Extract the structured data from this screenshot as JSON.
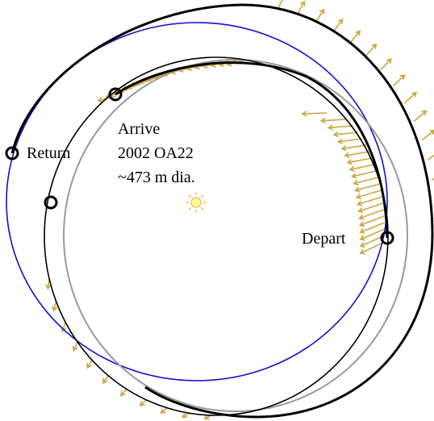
{
  "labels": {
    "arrive": "Arrive",
    "asteroid": "2002 OA22",
    "diameter": "~473 m dia.",
    "return": "Return",
    "depart": "Depart"
  }
}
